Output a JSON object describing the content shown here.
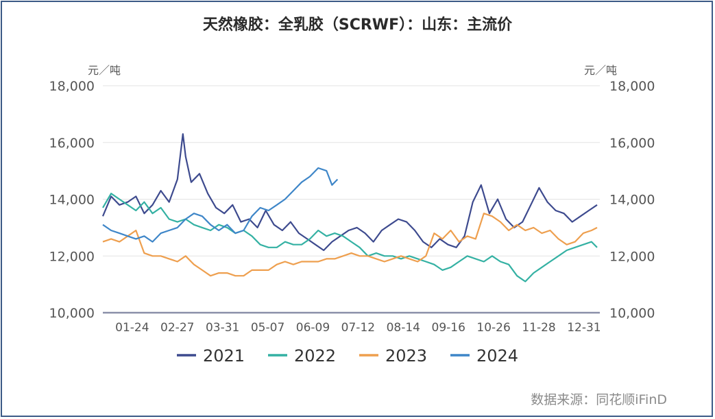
{
  "title": "天然橡胶：全乳胶（SCRWF）：山东：主流价",
  "source": "数据来源：同花顺iFinD",
  "chart_data": {
    "type": "line",
    "x_tick_labels": [
      "01-24",
      "02-27",
      "03-31",
      "05-07",
      "06-09",
      "07-12",
      "08-14",
      "09-16",
      "10-26",
      "11-28",
      "12-31"
    ],
    "yunit_left": "元／吨",
    "yunit_right": "元／吨",
    "ylim": [
      10000,
      18000
    ],
    "y_ticks": [
      10000,
      12000,
      14000,
      16000,
      18000
    ],
    "y_tick_labels": [
      "10,000",
      "12,000",
      "14,000",
      "16,000",
      "18,000"
    ],
    "grid": true,
    "legend_position": "bottom",
    "x_domain": [
      0,
      360
    ],
    "series": [
      {
        "name": "2021",
        "color": "#3d4a8e",
        "x": [
          0,
          6,
          12,
          18,
          24,
          30,
          36,
          42,
          48,
          54,
          56,
          58,
          60,
          64,
          70,
          76,
          82,
          88,
          94,
          100,
          106,
          112,
          118,
          124,
          130,
          136,
          142,
          148,
          154,
          160,
          166,
          172,
          178,
          184,
          190,
          196,
          202,
          208,
          214,
          220,
          226,
          232,
          238,
          244,
          250,
          256,
          262,
          268,
          274,
          280,
          286,
          292,
          298,
          304,
          310,
          316,
          322,
          328,
          334,
          340,
          346,
          352,
          358
        ],
        "y": [
          13400,
          14100,
          13800,
          13900,
          14100,
          13500,
          13800,
          14300,
          13900,
          14700,
          15500,
          16300,
          15500,
          14600,
          14900,
          14200,
          13700,
          13500,
          13800,
          13200,
          13300,
          13000,
          13600,
          13100,
          12900,
          13200,
          12800,
          12600,
          12400,
          12200,
          12500,
          12700,
          12900,
          13000,
          12800,
          12500,
          12900,
          13100,
          13300,
          13200,
          12900,
          12500,
          12300,
          12600,
          12400,
          12300,
          12700,
          13900,
          14500,
          13500,
          14000,
          13300,
          13000,
          13200,
          13800,
          14400,
          13900,
          13600,
          13500,
          13200,
          13400,
          13600,
          13800
        ]
      },
      {
        "name": "2022",
        "color": "#34b1a3",
        "x": [
          0,
          6,
          12,
          18,
          24,
          30,
          36,
          42,
          48,
          54,
          60,
          66,
          72,
          78,
          84,
          90,
          96,
          102,
          108,
          114,
          120,
          126,
          132,
          138,
          144,
          150,
          156,
          162,
          168,
          174,
          180,
          186,
          192,
          198,
          204,
          210,
          216,
          222,
          228,
          234,
          240,
          246,
          252,
          258,
          264,
          270,
          276,
          282,
          288,
          294,
          300,
          306,
          312,
          318,
          324,
          330,
          336,
          342,
          348,
          354,
          358
        ],
        "y": [
          13700,
          14200,
          14000,
          13800,
          13600,
          13900,
          13500,
          13700,
          13300,
          13200,
          13300,
          13100,
          13000,
          12900,
          13100,
          13000,
          12800,
          12900,
          12700,
          12400,
          12300,
          12300,
          12500,
          12400,
          12400,
          12600,
          12900,
          12700,
          12800,
          12700,
          12500,
          12300,
          12000,
          12100,
          12000,
          12000,
          11900,
          12000,
          11900,
          11800,
          11700,
          11500,
          11600,
          11800,
          12000,
          11900,
          11800,
          12000,
          11800,
          11700,
          11300,
          11100,
          11400,
          11600,
          11800,
          12000,
          12200,
          12300,
          12400,
          12500,
          12300
        ]
      },
      {
        "name": "2023",
        "color": "#ee9f4e",
        "x": [
          0,
          6,
          12,
          18,
          24,
          30,
          36,
          42,
          48,
          54,
          60,
          66,
          72,
          78,
          84,
          90,
          96,
          102,
          108,
          114,
          120,
          126,
          132,
          138,
          144,
          150,
          156,
          162,
          168,
          174,
          180,
          186,
          192,
          198,
          204,
          210,
          216,
          222,
          228,
          234,
          240,
          246,
          252,
          258,
          264,
          270,
          276,
          282,
          288,
          294,
          300,
          306,
          312,
          318,
          324,
          330,
          336,
          342,
          348,
          354,
          358
        ],
        "y": [
          12500,
          12600,
          12500,
          12700,
          12900,
          12100,
          12000,
          12000,
          11900,
          11800,
          12000,
          11700,
          11500,
          11300,
          11400,
          11400,
          11300,
          11300,
          11500,
          11500,
          11500,
          11700,
          11800,
          11700,
          11800,
          11800,
          11800,
          11900,
          11900,
          12000,
          12100,
          12000,
          12000,
          11900,
          11800,
          11900,
          12000,
          11900,
          11800,
          12000,
          12800,
          12600,
          12900,
          12500,
          12700,
          12600,
          13500,
          13400,
          13200,
          12900,
          13100,
          12900,
          13000,
          12800,
          12900,
          12600,
          12400,
          12500,
          12800,
          12900,
          13000
        ]
      },
      {
        "name": "2024",
        "color": "#3e86c8",
        "x": [
          0,
          6,
          12,
          18,
          24,
          30,
          36,
          42,
          48,
          54,
          60,
          66,
          72,
          78,
          84,
          90,
          96,
          102,
          108,
          114,
          120,
          126,
          132,
          138,
          144,
          150,
          156,
          162,
          166,
          170
        ],
        "y": [
          13100,
          12900,
          12800,
          12700,
          12600,
          12700,
          12500,
          12800,
          12900,
          13000,
          13300,
          13500,
          13400,
          13100,
          12900,
          13100,
          12800,
          12900,
          13400,
          13700,
          13600,
          13800,
          14000,
          14300,
          14600,
          14800,
          15100,
          15000,
          14500,
          14700
        ]
      }
    ]
  }
}
